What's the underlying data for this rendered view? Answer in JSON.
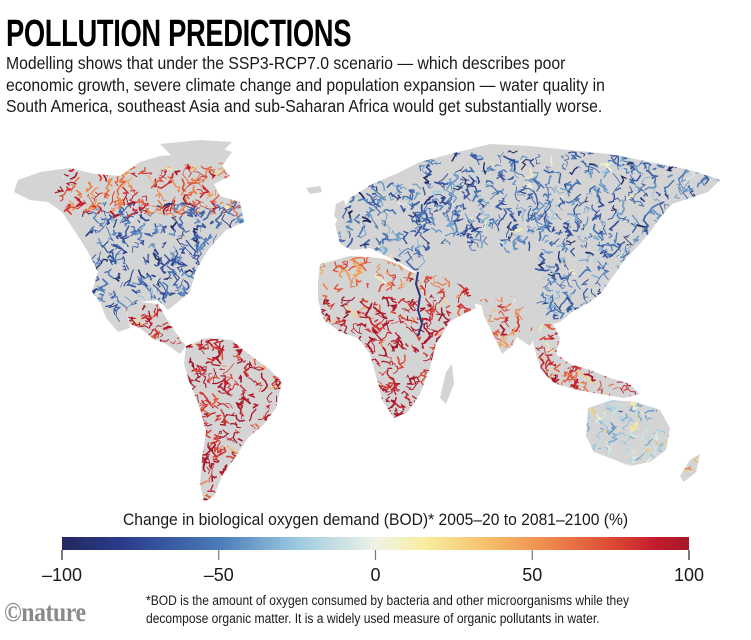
{
  "header": {
    "title": "POLLUTION PREDICTIONS",
    "subtitle_lines": [
      "Modelling shows that under the SSP3-RCP7.0 scenario — which describes poor",
      "economic growth, severe climate change and population expansion — water quality in",
      "South America, southeast Asia and sub-Saharan Africa would get substantially worse."
    ]
  },
  "chart_data": {
    "type": "heatmap",
    "subtype": "choropleth-map",
    "title": "POLLUTION PREDICTIONS",
    "scenario": "SSP3-RCP7.0",
    "colorbar": {
      "label": "Change in biological oxygen demand (BOD)* 2005–20 to 2081–2100 (%)",
      "range": [
        -100,
        100
      ],
      "ticks": [
        -100,
        -50,
        0,
        50,
        100
      ],
      "tick_labels": [
        "–100",
        "–50",
        "0",
        "50",
        "100"
      ],
      "stops": [
        {
          "value": -100,
          "color": "#23285f"
        },
        {
          "value": -80,
          "color": "#2b3d8f"
        },
        {
          "value": -50,
          "color": "#4a7ab8"
        },
        {
          "value": -25,
          "color": "#9ccae0"
        },
        {
          "value": 0,
          "color": "#eef3e6"
        },
        {
          "value": 15,
          "color": "#f8eea2"
        },
        {
          "value": 35,
          "color": "#f6c26b"
        },
        {
          "value": 55,
          "color": "#ee8a4e"
        },
        {
          "value": 75,
          "color": "#dd4b34"
        },
        {
          "value": 90,
          "color": "#c31a2c"
        },
        {
          "value": 100,
          "color": "#a5182a"
        }
      ]
    },
    "land_color": "#d4d4d4",
    "regions": [
      {
        "name": "North America",
        "dominant_change": -60
      },
      {
        "name": "Northern Canada",
        "dominant_change": 70
      },
      {
        "name": "Central America",
        "dominant_change": 90
      },
      {
        "name": "South America",
        "dominant_change": 90
      },
      {
        "name": "Europe",
        "dominant_change": -50
      },
      {
        "name": "Russia",
        "dominant_change": -55
      },
      {
        "name": "North Africa",
        "dominant_change": 60
      },
      {
        "name": "Sub-Saharan Africa",
        "dominant_change": 95
      },
      {
        "name": "Middle East",
        "dominant_change": 70
      },
      {
        "name": "South Asia",
        "dominant_change": 65
      },
      {
        "name": "East Asia",
        "dominant_change": -50
      },
      {
        "name": "Southeast Asia",
        "dominant_change": 80
      },
      {
        "name": "Australia",
        "dominant_change": -20
      },
      {
        "name": "New Zealand",
        "dominant_change": 40
      }
    ]
  },
  "footnote_lines": [
    "*BOD is the amount of oxygen consumed by bacteria and other microorganisms while they",
    "decompose organic matter. It is a widely used measure of organic pollutants in water."
  ],
  "branding": {
    "logo_text": "©nature"
  }
}
